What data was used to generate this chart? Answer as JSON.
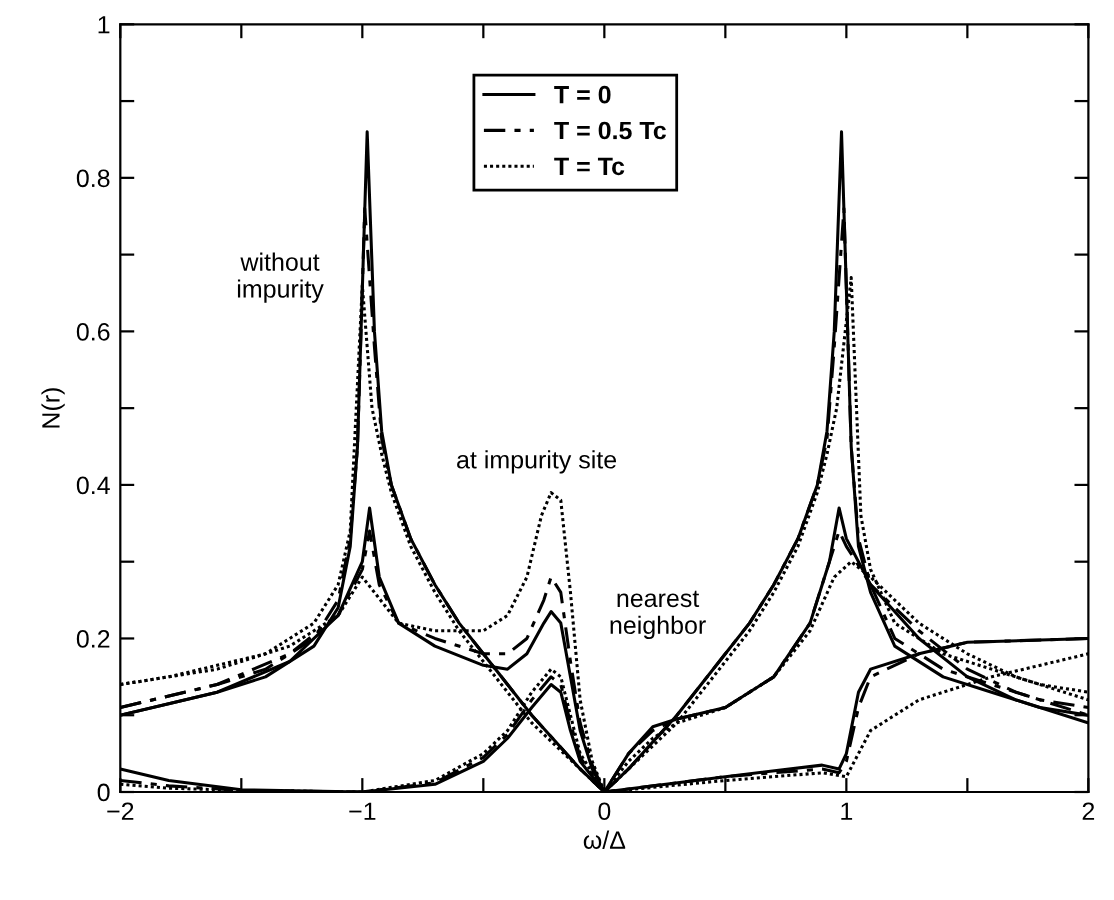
{
  "chart_data": {
    "type": "line",
    "xlabel": "ω/Δ",
    "ylabel": "N(r)",
    "xlim": [
      -2,
      2
    ],
    "ylim": [
      0,
      1
    ],
    "xticks": [
      {
        "value": -2,
        "label": "−2"
      },
      {
        "value": -1.5,
        "label": null
      },
      {
        "value": -1,
        "label": "−1"
      },
      {
        "value": -0.5,
        "label": null
      },
      0,
      {
        "value": 0.5,
        "label": null
      },
      1,
      {
        "value": 1.5,
        "label": null
      },
      2
    ],
    "yticks": [
      0,
      {
        "value": 0.1,
        "label": null
      },
      0.2,
      {
        "value": 0.3,
        "label": null
      },
      0.4,
      {
        "value": 0.5,
        "label": null
      },
      0.6,
      {
        "value": 0.7,
        "label": null
      },
      0.8,
      {
        "value": 0.9,
        "label": null
      },
      1
    ],
    "grid": false,
    "legend": "top",
    "marker": "none",
    "annotations": [
      "without\nimpurity",
      "at impurity site",
      "nearest\nneighbor"
    ],
    "series": [
      {
        "name": "T = 0",
        "color": "#000000",
        "line_style": "solid",
        "x": [
          -2,
          -1.8,
          -1.6,
          -1.4,
          -1.2,
          -1.1,
          -1.05,
          -1.02,
          -0.98,
          -0.95,
          -0.92,
          -0.88,
          -0.8,
          -0.7,
          -0.6,
          -0.5,
          -0.4,
          -0.3,
          -0.2,
          -0.1,
          0,
          0.1,
          0.2,
          0.3,
          0.4,
          0.5,
          0.6,
          0.7,
          0.8,
          0.88,
          0.92,
          0.95,
          0.98,
          1.02,
          1.05,
          1.1,
          1.2,
          1.4,
          1.6,
          1.8,
          2
        ],
        "values": [
          0.1,
          0.115,
          0.13,
          0.15,
          0.19,
          0.24,
          0.32,
          0.45,
          0.86,
          0.6,
          0.47,
          0.4,
          0.33,
          0.27,
          0.22,
          0.18,
          0.14,
          0.1,
          0.065,
          0.03,
          0.0,
          0.03,
          0.065,
          0.1,
          0.14,
          0.18,
          0.22,
          0.27,
          0.33,
          0.4,
          0.47,
          0.6,
          0.86,
          0.45,
          0.32,
          0.26,
          0.19,
          0.15,
          0.13,
          0.11,
          0.1
        ]
      },
      {
        "name": "T = 0.5 Tc",
        "color": "#000000",
        "line_style": "dashed",
        "x": [
          -2,
          -1.8,
          -1.6,
          -1.4,
          -1.2,
          -1.1,
          -1.05,
          -1.02,
          -0.99,
          -0.95,
          -0.92,
          -0.88,
          -0.8,
          -0.7,
          -0.6,
          -0.5,
          -0.4,
          -0.3,
          -0.2,
          -0.1,
          0,
          0.1,
          0.2,
          0.3,
          0.4,
          0.5,
          0.6,
          0.7,
          0.8,
          0.88,
          0.92,
          0.95,
          0.99,
          1.02,
          1.05,
          1.1,
          1.2,
          1.4,
          1.6,
          1.8,
          2
        ],
        "values": [
          0.11,
          0.125,
          0.14,
          0.16,
          0.2,
          0.25,
          0.33,
          0.45,
          0.76,
          0.58,
          0.46,
          0.4,
          0.33,
          0.27,
          0.22,
          0.18,
          0.14,
          0.1,
          0.065,
          0.03,
          0.0,
          0.03,
          0.065,
          0.1,
          0.14,
          0.18,
          0.22,
          0.27,
          0.33,
          0.4,
          0.46,
          0.58,
          0.76,
          0.45,
          0.33,
          0.27,
          0.2,
          0.16,
          0.14,
          0.12,
          0.11
        ]
      },
      {
        "name": "T = Tc",
        "color": "#000000",
        "line_style": "dotted",
        "x": [
          -2,
          -1.8,
          -1.6,
          -1.4,
          -1.2,
          -1.1,
          -1.05,
          -1.0,
          -0.96,
          -0.92,
          -0.88,
          -0.8,
          -0.7,
          -0.6,
          -0.5,
          -0.4,
          -0.3,
          -0.2,
          -0.1,
          0,
          0.1,
          0.2,
          0.3,
          0.4,
          0.5,
          0.6,
          0.7,
          0.8,
          0.88,
          0.92,
          0.96,
          1.02,
          1.06,
          1.1,
          1.2,
          1.4,
          1.6,
          1.8,
          2
        ],
        "values": [
          0.14,
          0.15,
          0.165,
          0.18,
          0.22,
          0.27,
          0.34,
          0.66,
          0.5,
          0.44,
          0.39,
          0.32,
          0.26,
          0.21,
          0.17,
          0.13,
          0.09,
          0.06,
          0.03,
          0.0,
          0.03,
          0.06,
          0.09,
          0.13,
          0.17,
          0.21,
          0.26,
          0.32,
          0.39,
          0.44,
          0.5,
          0.67,
          0.36,
          0.29,
          0.22,
          0.18,
          0.16,
          0.14,
          0.13
        ]
      },
      {
        "color": "#000000",
        "line_style": "solid",
        "x": [
          -2,
          -1.6,
          -1.3,
          -1.1,
          -1.0,
          -0.97,
          -0.93,
          -0.85,
          -0.7,
          -0.5,
          -0.4,
          -0.32,
          -0.25,
          -0.22,
          -0.18,
          -0.14,
          -0.1,
          -0.05,
          0,
          0.1,
          0.2,
          0.3,
          0.5,
          0.7,
          0.85,
          0.93,
          0.97,
          1.0,
          1.1,
          1.3,
          1.5,
          1.7,
          2
        ],
        "values": [
          0.1,
          0.13,
          0.17,
          0.23,
          0.3,
          0.37,
          0.28,
          0.22,
          0.19,
          0.165,
          0.16,
          0.18,
          0.22,
          0.235,
          0.22,
          0.15,
          0.08,
          0.03,
          0.0,
          0.05,
          0.085,
          0.095,
          0.11,
          0.15,
          0.22,
          0.3,
          0.37,
          0.33,
          0.27,
          0.2,
          0.15,
          0.12,
          0.09
        ]
      },
      {
        "color": "#000000",
        "line_style": "dashed",
        "x": [
          -2,
          -1.6,
          -1.3,
          -1.1,
          -1.0,
          -0.97,
          -0.93,
          -0.85,
          -0.7,
          -0.5,
          -0.4,
          -0.32,
          -0.25,
          -0.22,
          -0.18,
          -0.14,
          -0.1,
          -0.05,
          0,
          0.1,
          0.2,
          0.3,
          0.5,
          0.7,
          0.85,
          0.93,
          0.97,
          1.0,
          1.1,
          1.3,
          1.5,
          1.7,
          2
        ],
        "values": [
          0.11,
          0.14,
          0.18,
          0.23,
          0.29,
          0.34,
          0.27,
          0.22,
          0.2,
          0.18,
          0.18,
          0.2,
          0.25,
          0.28,
          0.26,
          0.17,
          0.09,
          0.035,
          0.0,
          0.05,
          0.08,
          0.095,
          0.11,
          0.15,
          0.22,
          0.3,
          0.34,
          0.32,
          0.27,
          0.21,
          0.16,
          0.13,
          0.1
        ]
      },
      {
        "color": "#000000",
        "line_style": "dotted",
        "x": [
          -2,
          -1.6,
          -1.3,
          -1.1,
          -1.0,
          -0.95,
          -0.85,
          -0.7,
          -0.5,
          -0.4,
          -0.32,
          -0.26,
          -0.22,
          -0.18,
          -0.14,
          -0.1,
          -0.05,
          0,
          0.1,
          0.2,
          0.3,
          0.5,
          0.7,
          0.85,
          0.95,
          1.02,
          1.1,
          1.3,
          1.5,
          1.7,
          2
        ],
        "values": [
          0.14,
          0.16,
          0.19,
          0.23,
          0.28,
          0.26,
          0.22,
          0.21,
          0.21,
          0.23,
          0.28,
          0.36,
          0.39,
          0.38,
          0.26,
          0.12,
          0.04,
          0.0,
          0.04,
          0.07,
          0.09,
          0.11,
          0.15,
          0.21,
          0.28,
          0.3,
          0.28,
          0.22,
          0.18,
          0.15,
          0.12
        ]
      },
      {
        "color": "#000000",
        "line_style": "solid",
        "x": [
          -2,
          -1.8,
          -1.5,
          -1.0,
          -0.7,
          -0.5,
          -0.4,
          -0.3,
          -0.22,
          -0.18,
          -0.14,
          -0.1,
          0,
          0.5,
          0.9,
          0.97,
          1.0,
          1.05,
          1.1,
          1.3,
          1.5,
          2
        ],
        "values": [
          0.03,
          0.015,
          0.003,
          0.0,
          0.01,
          0.04,
          0.07,
          0.11,
          0.14,
          0.13,
          0.08,
          0.04,
          0.0,
          0.02,
          0.035,
          0.03,
          0.05,
          0.13,
          0.16,
          0.18,
          0.195,
          0.2
        ]
      },
      {
        "color": "#000000",
        "line_style": "dashed",
        "x": [
          -2,
          -1.8,
          -1.5,
          -1.0,
          -0.7,
          -0.5,
          -0.4,
          -0.3,
          -0.22,
          -0.18,
          -0.14,
          -0.1,
          0,
          0.5,
          0.9,
          0.97,
          1.0,
          1.05,
          1.1,
          1.3,
          1.5,
          2
        ],
        "values": [
          0.015,
          0.008,
          0.002,
          0.0,
          0.012,
          0.045,
          0.075,
          0.12,
          0.15,
          0.14,
          0.09,
          0.045,
          0.0,
          0.02,
          0.03,
          0.025,
          0.04,
          0.11,
          0.15,
          0.18,
          0.195,
          0.2
        ]
      },
      {
        "color": "#000000",
        "line_style": "dotted",
        "x": [
          -2,
          -1.8,
          -1.5,
          -1.0,
          -0.7,
          -0.5,
          -0.4,
          -0.3,
          -0.22,
          -0.18,
          -0.14,
          -0.1,
          0,
          0.5,
          0.9,
          1.0,
          1.05,
          1.1,
          1.3,
          1.6,
          2
        ],
        "values": [
          0.01,
          0.005,
          0.002,
          0.0,
          0.015,
          0.05,
          0.08,
          0.13,
          0.16,
          0.15,
          0.1,
          0.05,
          0.0,
          0.015,
          0.025,
          0.02,
          0.05,
          0.08,
          0.12,
          0.15,
          0.18
        ]
      }
    ]
  }
}
